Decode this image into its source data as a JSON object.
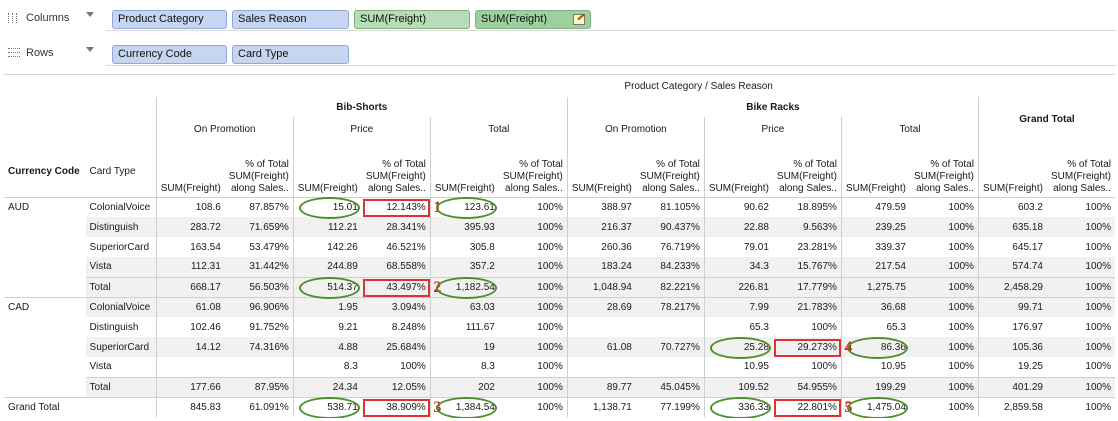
{
  "shelves": {
    "columns": {
      "label": "Columns",
      "pills": [
        "Product Category",
        "Sales Reason",
        "SUM(Freight)",
        "SUM(Freight)"
      ]
    },
    "rows": {
      "label": "Rows",
      "pills": [
        "Currency Code",
        "Card Type"
      ]
    }
  },
  "table": {
    "top_title": "Product Category / Sales Reason",
    "row_headers": [
      "Currency Code",
      "Card Type"
    ],
    "categories": [
      "Bib-Shorts",
      "Bike Racks"
    ],
    "sales_reasons": [
      "On Promotion",
      "Price",
      "Total"
    ],
    "grand_total_label": "Grand Total",
    "measure_sum": "SUM(Freight)",
    "measure_pct": [
      "% of Total",
      "SUM(Freight)",
      "along Sales.."
    ],
    "rows": [
      {
        "cur": "AUD",
        "card": "ColonialVoice",
        "v": [
          "108.6",
          "87.857%",
          "15.01",
          "12.143%",
          "123.61",
          "100%",
          "388.97",
          "81.105%",
          "90.62",
          "18.895%",
          "479.59",
          "100%",
          "603.2",
          "100%"
        ]
      },
      {
        "cur": "",
        "card": "Distinguish",
        "v": [
          "283.72",
          "71.659%",
          "112.21",
          "28.341%",
          "395.93",
          "100%",
          "216.37",
          "90.437%",
          "22.88",
          "9.563%",
          "239.25",
          "100%",
          "635.18",
          "100%"
        ]
      },
      {
        "cur": "",
        "card": "SuperiorCard",
        "v": [
          "163.54",
          "53.479%",
          "142.26",
          "46.521%",
          "305.8",
          "100%",
          "260.36",
          "76.719%",
          "79.01",
          "23.281%",
          "339.37",
          "100%",
          "645.17",
          "100%"
        ]
      },
      {
        "cur": "",
        "card": "Vista",
        "v": [
          "112.31",
          "31.442%",
          "244.89",
          "68.558%",
          "357.2",
          "100%",
          "183.24",
          "84.233%",
          "34.3",
          "15.767%",
          "217.54",
          "100%",
          "574.74",
          "100%"
        ]
      },
      {
        "cur": "",
        "card": "Total",
        "v": [
          "668.17",
          "56.503%",
          "514.37",
          "43.497%",
          "1,182.54",
          "100%",
          "1,048.94",
          "82.221%",
          "226.81",
          "17.779%",
          "1,275.75",
          "100%",
          "2,458.29",
          "100%"
        ]
      },
      {
        "cur": "CAD",
        "card": "ColonialVoice",
        "v": [
          "61.08",
          "96.906%",
          "1.95",
          "3.094%",
          "63.03",
          "100%",
          "28.69",
          "78.217%",
          "7.99",
          "21.783%",
          "36.68",
          "100%",
          "99.71",
          "100%"
        ]
      },
      {
        "cur": "",
        "card": "Distinguish",
        "v": [
          "102.46",
          "91.752%",
          "9.21",
          "8.248%",
          "111.67",
          "100%",
          "",
          "",
          "65.3",
          "100%",
          "65.3",
          "100%",
          "176.97",
          "100%"
        ]
      },
      {
        "cur": "",
        "card": "SuperiorCard",
        "v": [
          "14.12",
          "74.316%",
          "4.88",
          "25.684%",
          "19",
          "100%",
          "61.08",
          "70.727%",
          "25.28",
          "29.273%",
          "86.36",
          "100%",
          "105.36",
          "100%"
        ]
      },
      {
        "cur": "",
        "card": "Vista",
        "v": [
          "",
          "",
          "8.3",
          "100%",
          "8.3",
          "100%",
          "",
          "",
          "10.95",
          "100%",
          "10.95",
          "100%",
          "19.25",
          "100%"
        ]
      },
      {
        "cur": "",
        "card": "Total",
        "v": [
          "177.66",
          "87.95%",
          "24.34",
          "12.05%",
          "202",
          "100%",
          "89.77",
          "45.045%",
          "109.52",
          "54.955%",
          "199.29",
          "100%",
          "401.29",
          "100%"
        ]
      }
    ],
    "grand_row": {
      "label": "Grand Total",
      "v": [
        "845.83",
        "61.091%",
        "538.71",
        "38.909%",
        "1,384.54",
        "100%",
        "1,138.71",
        "77.199%",
        "336.33",
        "22.801%",
        "1,475.04",
        "100%",
        "2,859.58",
        "100%"
      ]
    }
  },
  "annotations": {
    "numbers": [
      "1",
      "2",
      "3",
      "4",
      "5"
    ],
    "colors": {
      "oval": "#4b8f2e",
      "box": "#e03030"
    }
  }
}
